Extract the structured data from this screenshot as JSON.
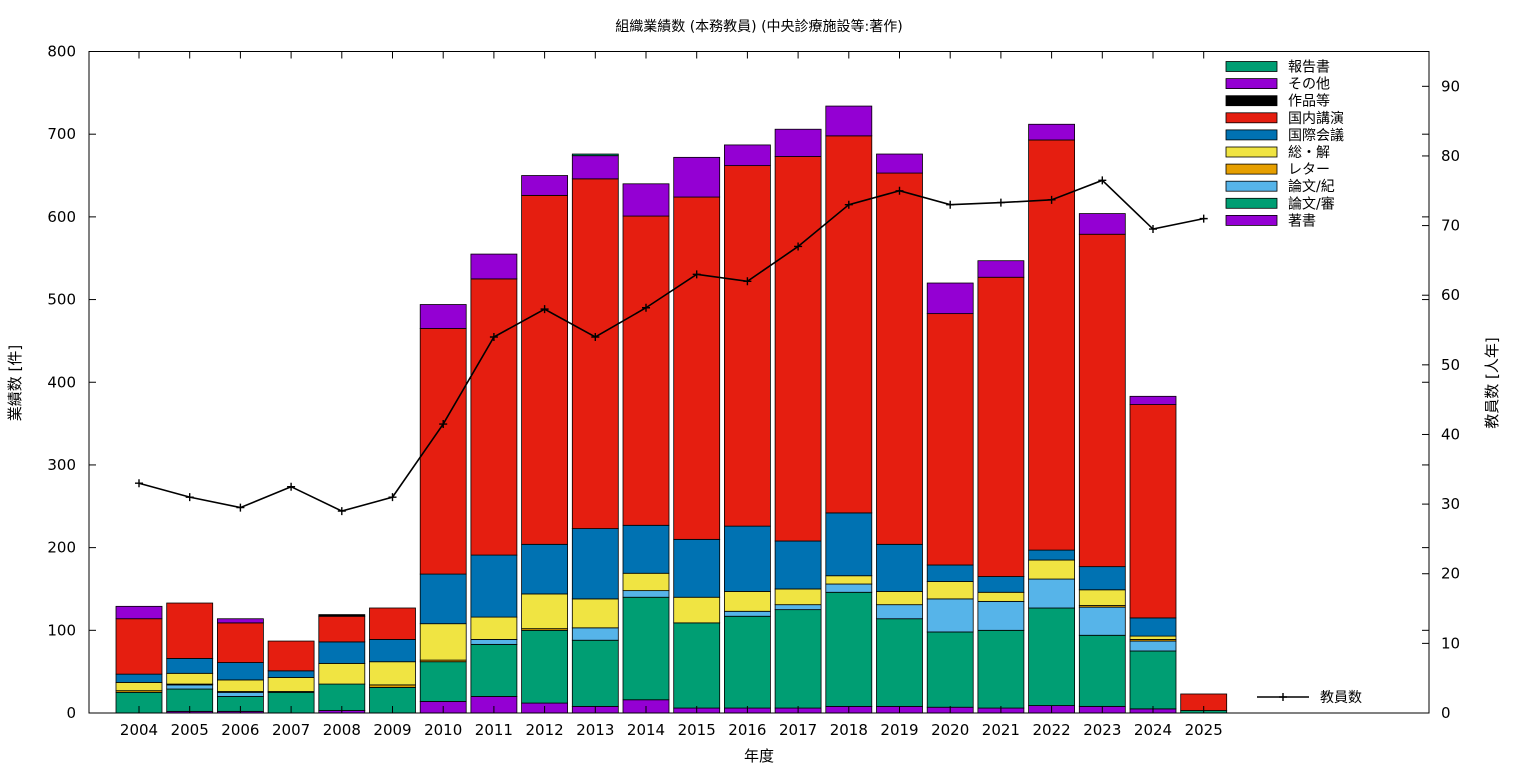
{
  "chart_data": {
    "type": "bar",
    "title": "組織業績数 (本務教員) (中央診療施設等:著作)",
    "xlabel": "年度",
    "ylabel": "業績数 [件]",
    "y2label": "教員数 [人年]",
    "ylim": [
      0,
      800
    ],
    "y2lim": [
      0,
      95
    ],
    "yticks": [
      0,
      100,
      200,
      300,
      400,
      500,
      600,
      700,
      800
    ],
    "y2ticks": [
      0,
      10,
      20,
      30,
      40,
      50,
      60,
      70,
      80,
      90
    ],
    "grid": false,
    "stacked": true,
    "legend_position": "top-right",
    "categories": [
      "2004",
      "2005",
      "2006",
      "2007",
      "2008",
      "2009",
      "2010",
      "2011",
      "2012",
      "2013",
      "2014",
      "2015",
      "2016",
      "2017",
      "2018",
      "2019",
      "2020",
      "2021",
      "2022",
      "2023",
      "2024",
      "2025"
    ],
    "series": [
      {
        "name": "著書",
        "color": "#9400d3",
        "values": [
          0,
          2,
          2,
          0,
          3,
          0,
          14,
          20,
          12,
          8,
          16,
          6,
          6,
          6,
          8,
          8,
          7,
          6,
          9,
          8,
          5,
          0
        ]
      },
      {
        "name": "論文/審",
        "color": "#009e73",
        "values": [
          25,
          27,
          18,
          25,
          32,
          31,
          48,
          63,
          88,
          80,
          124,
          103,
          111,
          119,
          138,
          106,
          91,
          94,
          118,
          86,
          70,
          3
        ]
      },
      {
        "name": "論文/紀",
        "color": "#56b4e9",
        "values": [
          0,
          5,
          5,
          0,
          0,
          0,
          0,
          6,
          0,
          15,
          8,
          0,
          6,
          6,
          10,
          17,
          40,
          35,
          35,
          34,
          12,
          0
        ]
      },
      {
        "name": "レター",
        "color": "#e69f00",
        "values": [
          2,
          1,
          1,
          1,
          0,
          3,
          2,
          0,
          2,
          0,
          0,
          0,
          0,
          0,
          0,
          0,
          0,
          0,
          0,
          2,
          2,
          0
        ]
      },
      {
        "name": "総・解",
        "color": "#f0e442",
        "values": [
          10,
          13,
          14,
          17,
          25,
          28,
          44,
          27,
          42,
          35,
          21,
          31,
          24,
          19,
          10,
          16,
          21,
          11,
          23,
          19,
          4,
          0
        ]
      },
      {
        "name": "国際会議",
        "color": "#0072b2",
        "values": [
          10,
          18,
          21,
          8,
          26,
          27,
          60,
          75,
          60,
          85,
          58,
          70,
          79,
          58,
          76,
          57,
          20,
          19,
          12,
          28,
          22,
          0
        ]
      },
      {
        "name": "国内講演",
        "color": "#e51e10",
        "values": [
          67,
          67,
          48,
          36,
          31,
          38,
          297,
          334,
          422,
          423,
          374,
          414,
          436,
          465,
          456,
          449,
          304,
          362,
          496,
          402,
          258,
          20
        ]
      },
      {
        "name": "作品等",
        "color": "#000000",
        "values": [
          0,
          0,
          0,
          0,
          2,
          0,
          0,
          0,
          0,
          0,
          0,
          0,
          0,
          0,
          0,
          0,
          0,
          0,
          0,
          0,
          0,
          0
        ]
      },
      {
        "name": "その他",
        "color": "#9400d3",
        "values": [
          15,
          0,
          5,
          0,
          0,
          0,
          29,
          30,
          24,
          28,
          39,
          48,
          25,
          33,
          36,
          23,
          37,
          20,
          19,
          25,
          10,
          0
        ]
      },
      {
        "name": "報告書",
        "color": "#009e73",
        "values": [
          0,
          0,
          0,
          0,
          0,
          0,
          0,
          0,
          0,
          2,
          0,
          0,
          0,
          0,
          0,
          0,
          0,
          0,
          0,
          0,
          0,
          0
        ]
      }
    ],
    "line_series": {
      "name": "教員数",
      "axis": "y2",
      "color": "#000000",
      "values": [
        33,
        31,
        29.5,
        32.5,
        29,
        31,
        41.5,
        54,
        58,
        54,
        58.2,
        63,
        62,
        67,
        73,
        75,
        73,
        73.3,
        73.7,
        76.5,
        69.5,
        71
      ]
    }
  }
}
